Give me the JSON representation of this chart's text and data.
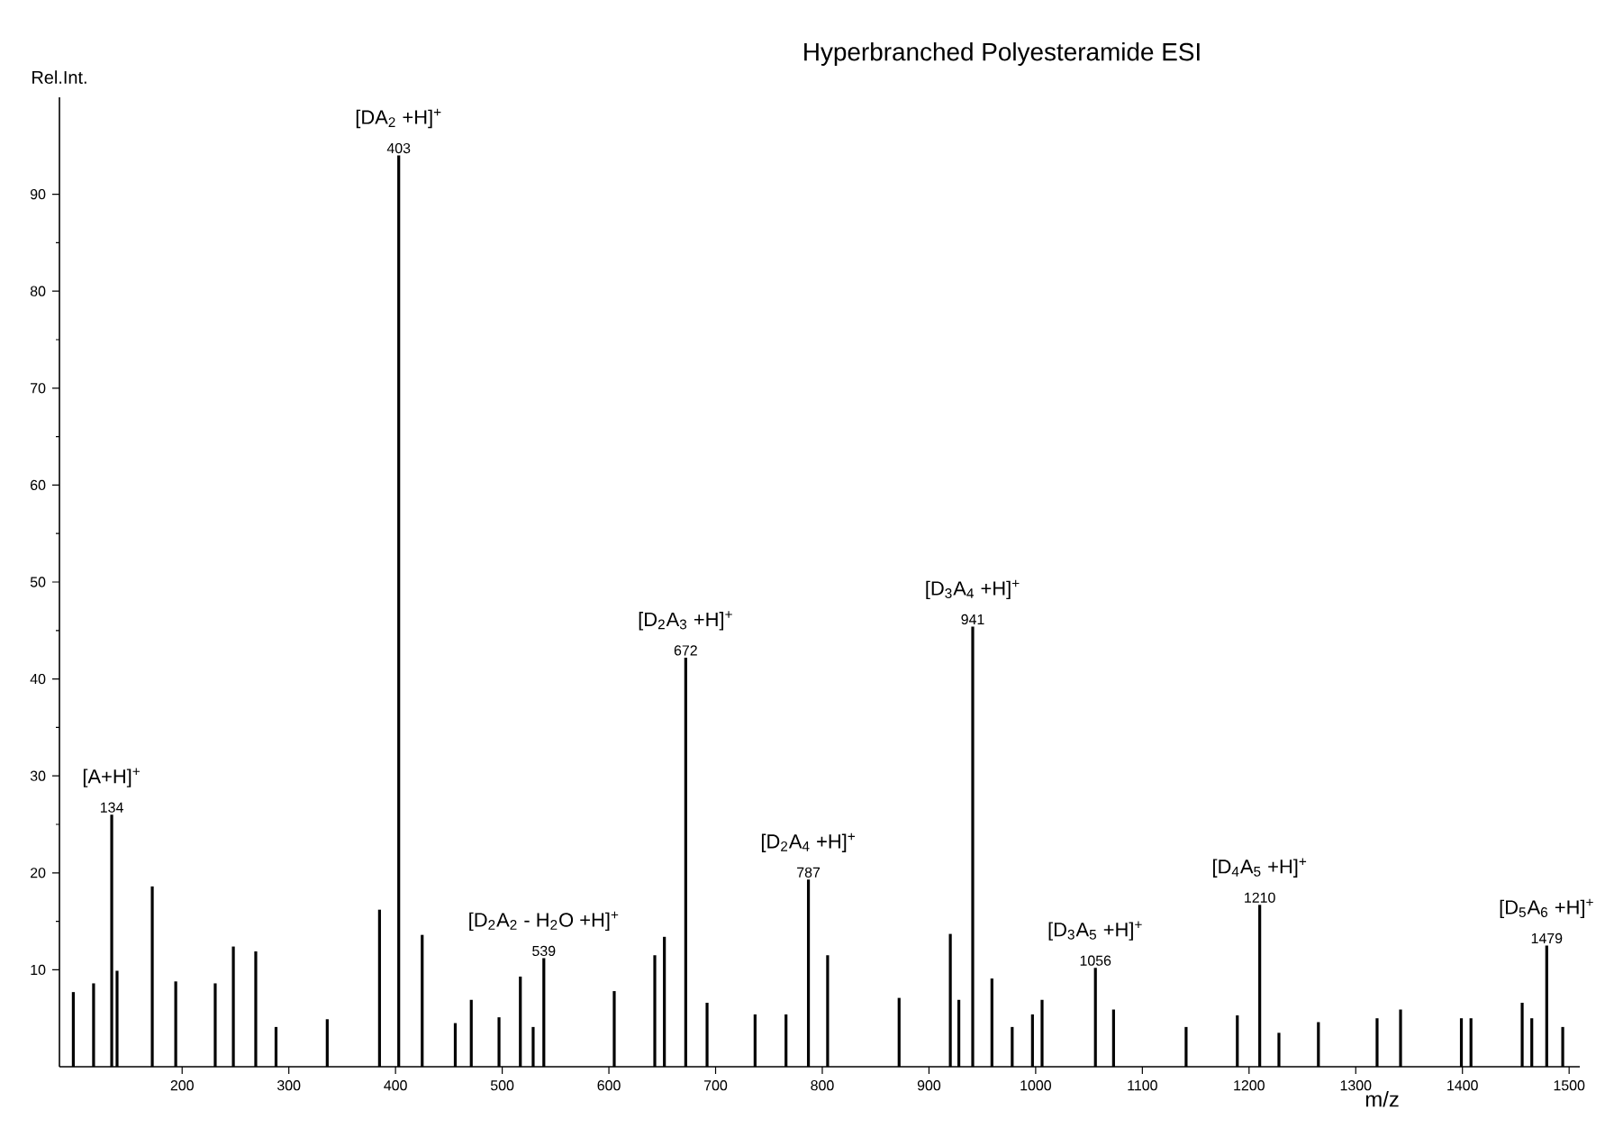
{
  "chart_data": {
    "type": "bar",
    "title": "Hyperbranched Polyesteramide  ESI",
    "xlabel": "m/z",
    "ylabel": "Rel.Int.",
    "color": "#000000",
    "x": [
      98,
      117,
      134,
      139,
      172,
      194,
      231,
      248,
      269,
      288,
      336,
      385,
      403,
      425,
      456,
      471,
      497,
      517,
      529,
      539,
      605,
      643,
      652,
      672,
      692,
      737,
      766,
      787,
      805,
      872,
      920,
      928,
      941,
      959,
      978,
      997,
      1006,
      1056,
      1073,
      1141,
      1189,
      1210,
      1228,
      1265,
      1320,
      1342,
      1399,
      1408,
      1456,
      1465,
      1479,
      1494
    ],
    "values": [
      7.7,
      8.6,
      26,
      9.9,
      18.6,
      8.8,
      8.6,
      12.4,
      11.9,
      4.1,
      4.9,
      16.2,
      94,
      13.6,
      4.5,
      6.9,
      5.1,
      9.3,
      4.1,
      11.2,
      7.8,
      11.5,
      13.4,
      42.2,
      6.6,
      5.4,
      5.4,
      19.3,
      11.5,
      7.1,
      13.7,
      6.9,
      45.4,
      9.1,
      4.1,
      5.4,
      6.9,
      10.2,
      5.9,
      4.1,
      5.3,
      16.7,
      3.5,
      4.6,
      5.0,
      5.9,
      5.0,
      5.0,
      6.6,
      5.0,
      12.5,
      4.1
    ],
    "xlim": [
      85,
      1510
    ],
    "xticks": [
      200,
      300,
      400,
      500,
      600,
      700,
      800,
      900,
      1000,
      1100,
      1200,
      1300,
      1400,
      1500
    ],
    "ylim": [
      0,
      100
    ],
    "yticks": [
      10,
      20,
      30,
      40,
      50,
      60,
      70,
      80,
      90
    ],
    "annotations": [
      {
        "text": "[A+H]$^{+}$",
        "x": 134,
        "y": 26
      },
      {
        "text": "134",
        "x": 134,
        "y": 26
      },
      {
        "text": "[DA$_{2}$ +H]$^{+}$",
        "x": 403,
        "y": 94
      },
      {
        "text": "403",
        "x": 403,
        "y": 94
      },
      {
        "text": "[D$_{2}$A$_{2}$ - H$_{2}$O +H]$^{+}$",
        "x": 539,
        "y": 11.2
      },
      {
        "text": "539",
        "x": 539,
        "y": 11.2
      },
      {
        "text": "[D$_{2}$A$_{3}$ +H]$^{+}$",
        "x": 672,
        "y": 42.2
      },
      {
        "text": "672",
        "x": 672,
        "y": 42.2
      },
      {
        "text": "[D$_{2}$A$_{4}$ +H]$^{+}$",
        "x": 787,
        "y": 19.3
      },
      {
        "text": "787",
        "x": 787,
        "y": 19.3
      },
      {
        "text": "[D$_{3}$A$_{4}$ +H]$^{+}$",
        "x": 941,
        "y": 45.4
      },
      {
        "text": "941",
        "x": 941,
        "y": 45.4
      },
      {
        "text": "[D$_{3}$A$_{5}$ +H]$^{+}$",
        "x": 1056,
        "y": 10.2
      },
      {
        "text": "1056",
        "x": 1056,
        "y": 10.2
      },
      {
        "text": "[D$_{4}$A$_{5}$ +H]$^{+}$",
        "x": 1210,
        "y": 16.7
      },
      {
        "text": "1210",
        "x": 1210,
        "y": 16.7
      },
      {
        "text": "[D$_{5}$A$_{6}$ +H]$^{+}$",
        "x": 1479,
        "y": 12.5
      },
      {
        "text": "1479",
        "x": 1479,
        "y": 12.5
      }
    ]
  }
}
